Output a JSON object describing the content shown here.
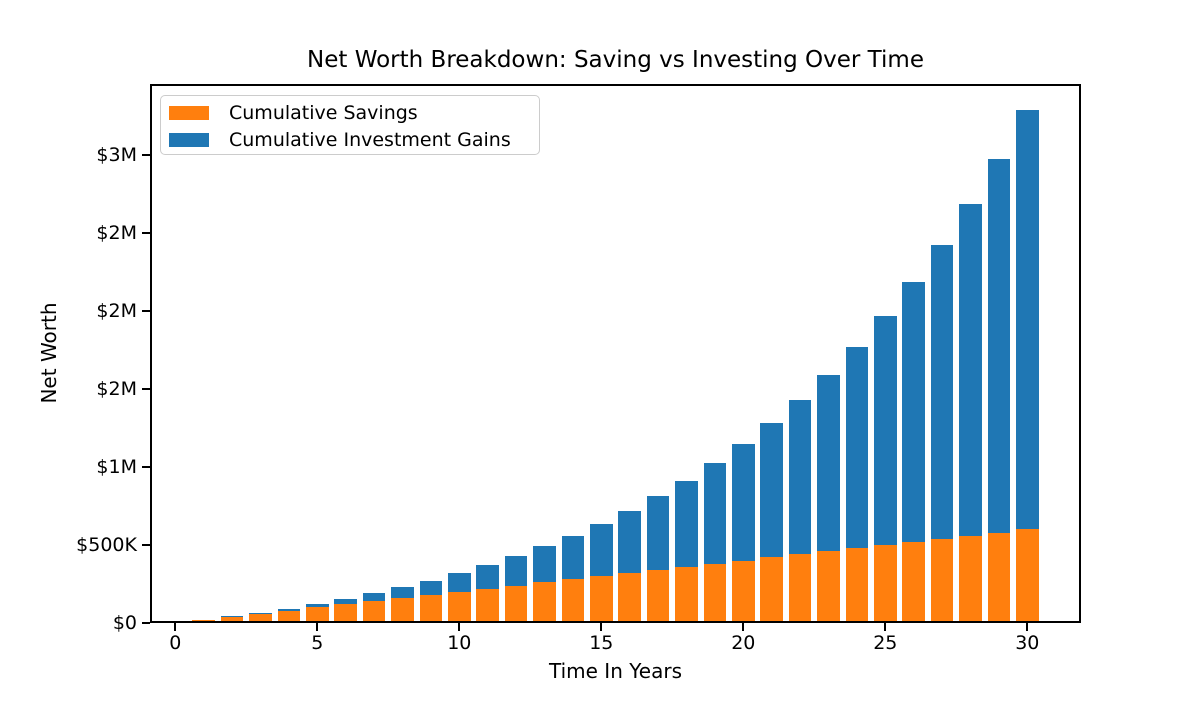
{
  "figure": {
    "background": "#ffffff",
    "text_color": "#000000"
  },
  "chart_data": {
    "type": "bar",
    "stacked": true,
    "title": "Net Worth Breakdown: Saving vs Investing Over Time",
    "xlabel": "Time In Years",
    "ylabel": "Net Worth",
    "grid": false,
    "legend_position": "upper-left",
    "x": [
      1,
      2,
      3,
      4,
      5,
      6,
      7,
      8,
      9,
      10,
      11,
      12,
      13,
      14,
      15,
      16,
      17,
      18,
      19,
      20,
      21,
      22,
      23,
      24,
      25,
      26,
      27,
      28,
      29,
      30
    ],
    "series": [
      {
        "name": "Cumulative Savings",
        "color": "#ff7f0e",
        "values": [
          20000,
          40000,
          60000,
          80000,
          100000,
          120000,
          140000,
          160000,
          180000,
          200000,
          220000,
          240000,
          260000,
          280000,
          300000,
          320000,
          340000,
          360000,
          380000,
          400000,
          420000,
          440000,
          460000,
          480000,
          500000,
          520000,
          540000,
          560000,
          580000,
          600000
        ]
      },
      {
        "name": "Cumulative Investment Gains",
        "color": "#1f77b4",
        "values": [
          0,
          2000,
          6200,
          12820,
          22102,
          34312,
          49743,
          68718,
          91590,
          118748,
          150623,
          187686,
          230454,
          279500,
          335450,
          398995,
          470894,
          551983,
          643182,
          745500,
          860050,
          988055,
          1130860,
          1289947,
          1466941,
          1663635,
          1881999,
          2124199,
          2392619,
          2689880
        ]
      }
    ],
    "bar_width": 0.8,
    "xlim": [
      -0.89,
      31.89
    ],
    "ylim": [
      0,
      3454374
    ],
    "xticks": {
      "values": [
        0,
        5,
        10,
        15,
        20,
        25,
        30
      ],
      "labels": [
        "0",
        "5",
        "10",
        "15",
        "20",
        "25",
        "30"
      ]
    },
    "yticks": {
      "values": [
        0,
        500000,
        1000000,
        1500000,
        2000000,
        2500000,
        3000000
      ],
      "labels": [
        "$0",
        "$500K",
        "$1M",
        "$2M",
        "$2M",
        "$2M",
        "$3M"
      ]
    }
  }
}
